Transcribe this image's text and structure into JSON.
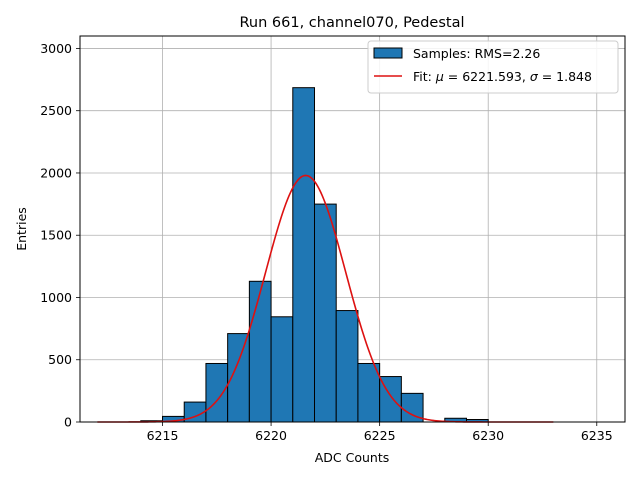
{
  "chart_data": {
    "type": "bar",
    "title": "Run 661, channel070, Pedestal",
    "xlabel": "ADC Counts",
    "ylabel": "Entries",
    "xlim": [
      6211.2,
      6236.3
    ],
    "ylim": [
      0,
      3100
    ],
    "xticks": [
      6215,
      6220,
      6225,
      6230,
      6235
    ],
    "yticks": [
      0,
      500,
      1000,
      1500,
      2000,
      2500,
      3000
    ],
    "grid": true,
    "legend_position": "top-right",
    "bin_width": 1,
    "bin_starts": [
      6214,
      6215,
      6216,
      6217,
      6218,
      6219,
      6220,
      6221,
      6222,
      6223,
      6224,
      6225,
      6226,
      6227,
      6228,
      6229
    ],
    "counts": [
      10,
      45,
      160,
      470,
      710,
      1130,
      845,
      2685,
      1750,
      895,
      470,
      365,
      230,
      0,
      30,
      20
    ],
    "colors": {
      "bar": "#1f77b4",
      "edge": "#000000",
      "fit": "#dd1111",
      "grid": "#b0b0b0"
    },
    "fit": {
      "mu": 6221.593,
      "sigma": 1.848,
      "amplitude": 1980,
      "x_range": [
        6212,
        6233
      ]
    },
    "legend": [
      {
        "kind": "bar",
        "label": "Samples: RMS=2.26"
      },
      {
        "kind": "line",
        "label_prefix": "Fit: ",
        "mu_symbol": "μ",
        "mu_text": " = 6221.593, ",
        "sigma_symbol": "σ",
        "sigma_text": " = 1.848"
      }
    ]
  }
}
